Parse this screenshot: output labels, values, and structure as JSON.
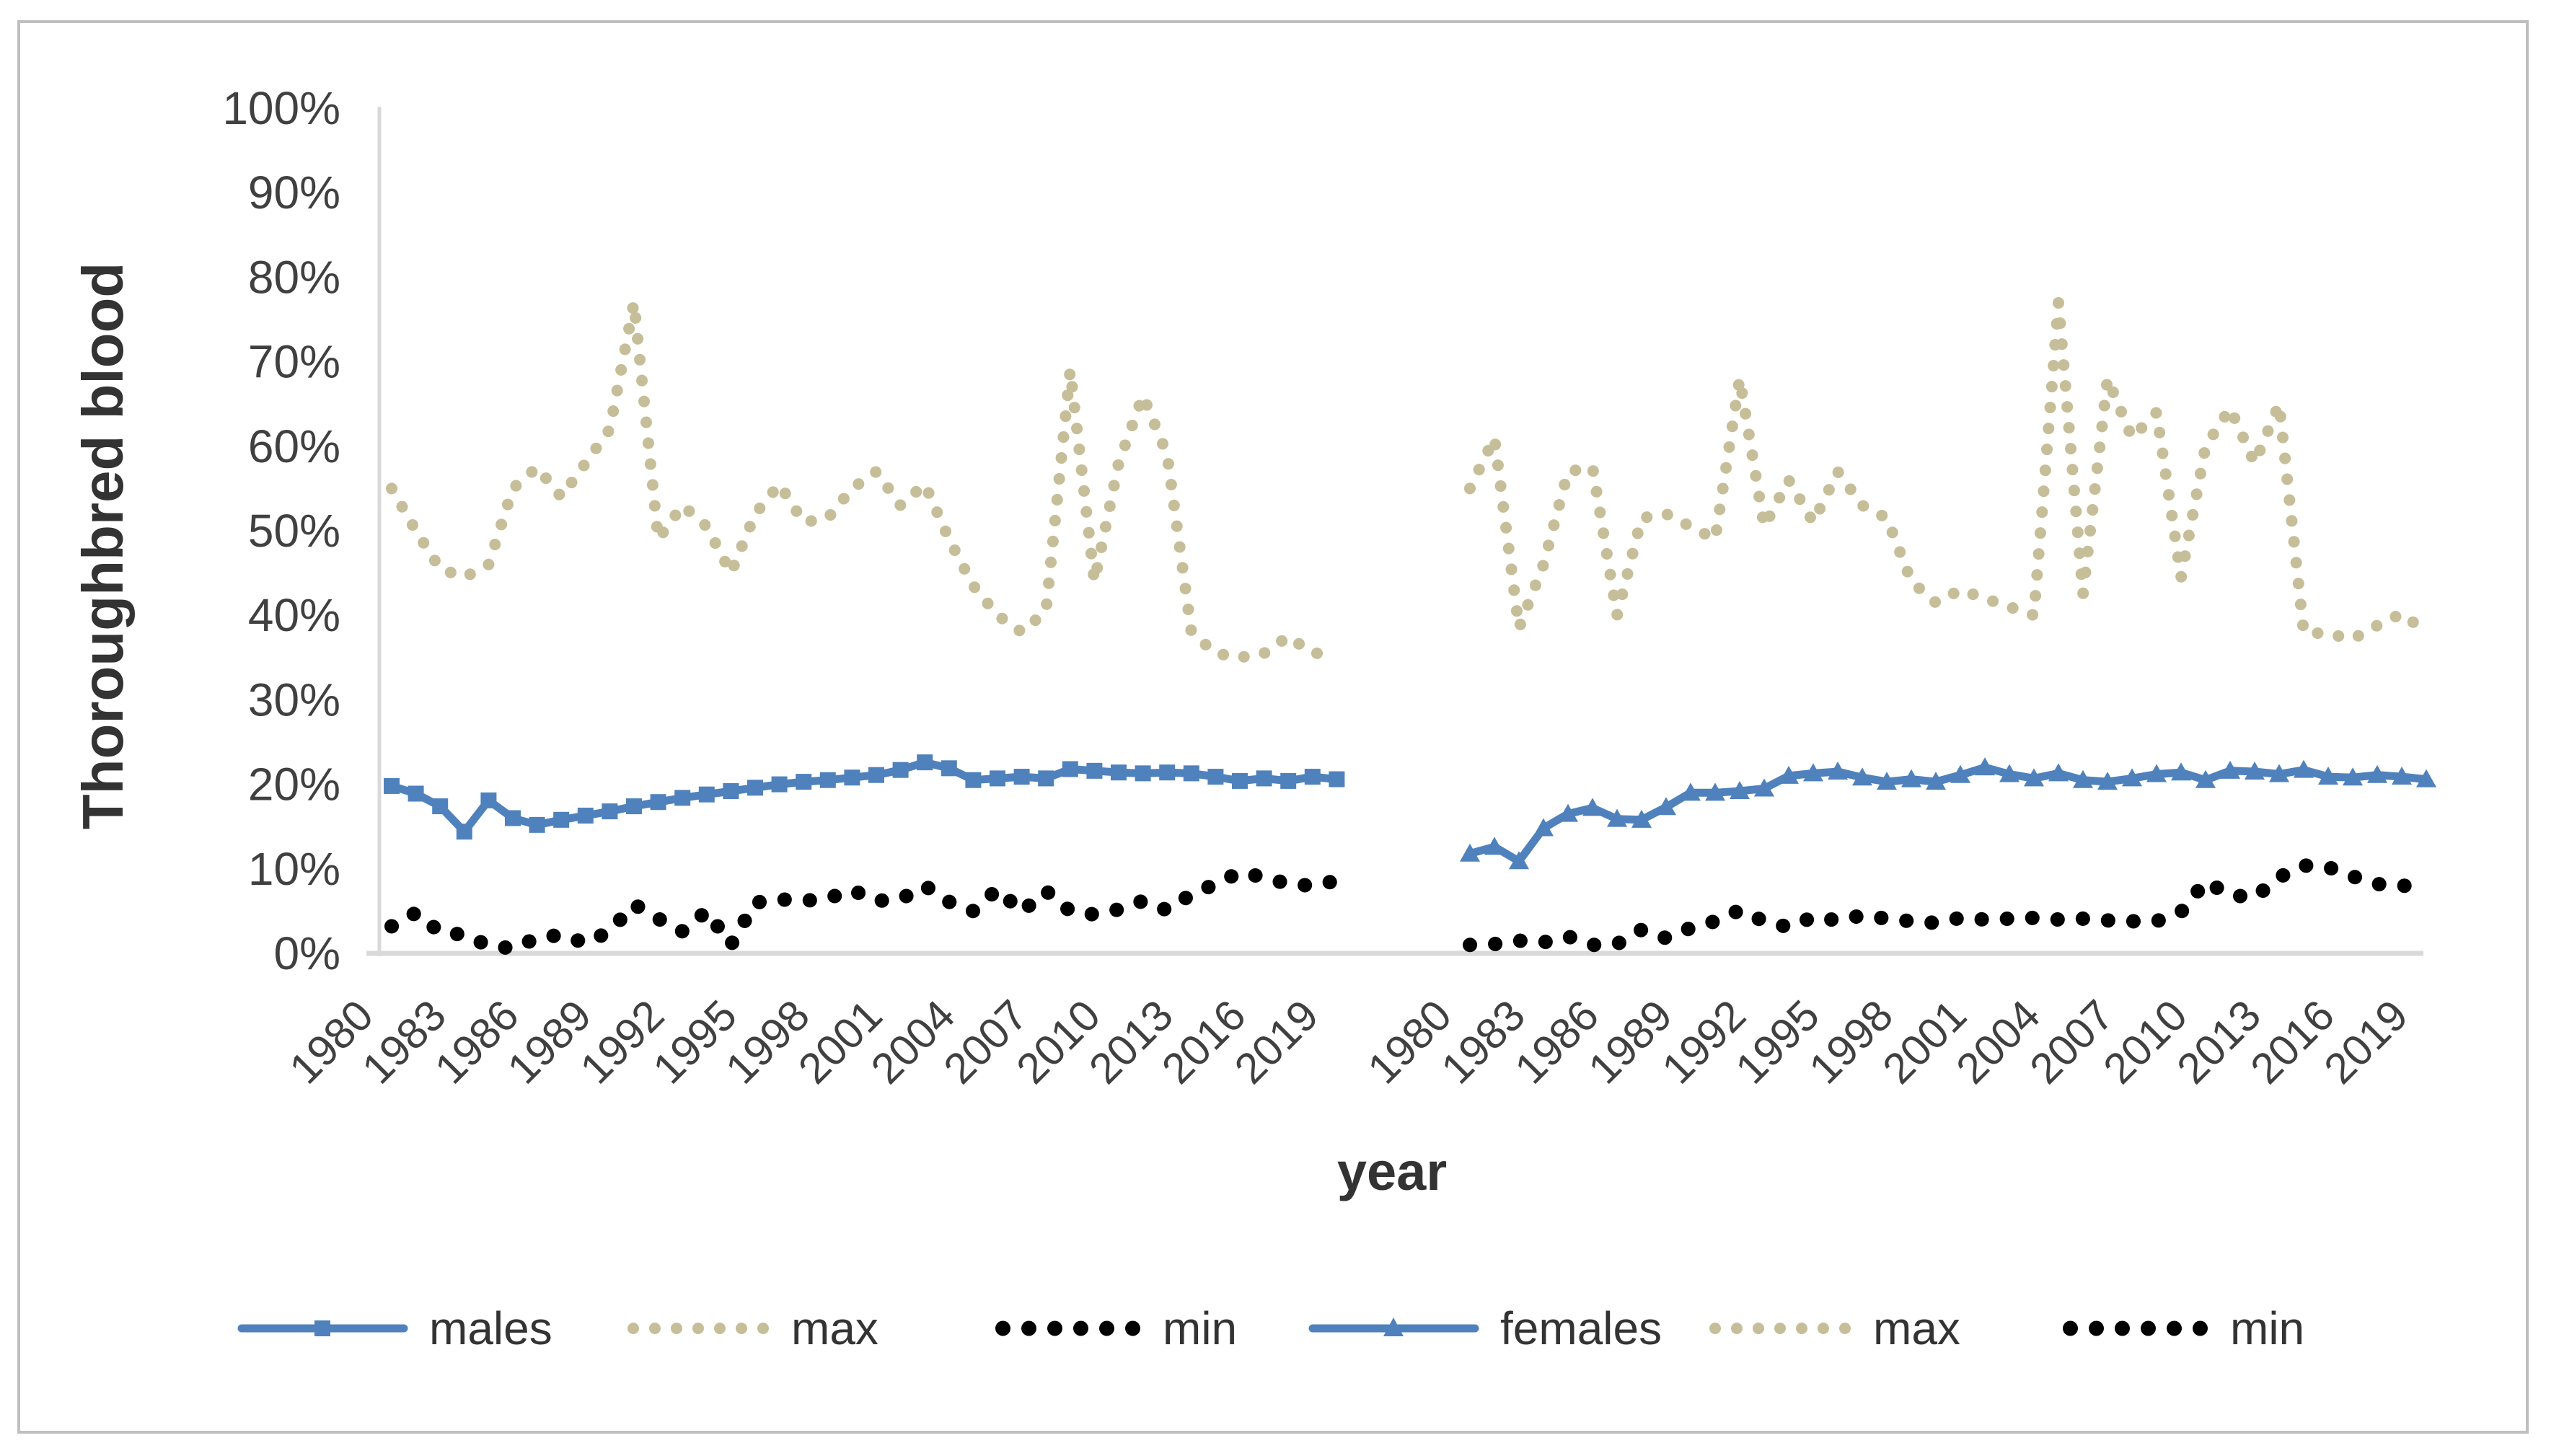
{
  "chart": {
    "colors": {
      "series_blue": "#4F81BD",
      "series_max_tan": "#C5BE98",
      "series_min_black": "#000000",
      "tick_text": "#404040",
      "title_text": "#333333",
      "axis_line": "#D9D9D9",
      "chart_border": "#BFBFBF",
      "background": "#FFFFFF"
    }
  },
  "chart_data": {
    "type": "line",
    "title": "",
    "ylabel": "Thoroughbred blood",
    "xlabel": "year",
    "ylim": [
      0,
      100
    ],
    "grid": false,
    "legend_position": "bottom",
    "y_ticks": [
      0,
      10,
      20,
      30,
      40,
      50,
      60,
      70,
      80,
      90,
      100
    ],
    "y_tick_labels": [
      "0%",
      "10%",
      "20%",
      "30%",
      "40%",
      "50%",
      "60%",
      "70%",
      "80%",
      "90%",
      "100%"
    ],
    "x": [
      1980,
      1981,
      1982,
      1983,
      1984,
      1985,
      1986,
      1987,
      1988,
      1989,
      1990,
      1991,
      1992,
      1993,
      1994,
      1995,
      1996,
      1997,
      1998,
      1999,
      2000,
      2001,
      2002,
      2003,
      2004,
      2005,
      2006,
      2007,
      2008,
      2009,
      2010,
      2011,
      2012,
      2013,
      2014,
      2015,
      2016,
      2017,
      2018,
      2019
    ],
    "x_tick_years": [
      1980,
      1983,
      1986,
      1989,
      1992,
      1995,
      1998,
      2001,
      2004,
      2007,
      2010,
      2013,
      2016,
      2019
    ],
    "panels": [
      {
        "name": "males",
        "series": [
          {
            "name": "males",
            "style": "solid-square",
            "color": "#4F81BD",
            "values": [
              19.8,
              18.9,
              17.4,
              14.4,
              18.1,
              16.0,
              15.2,
              15.8,
              16.3,
              16.8,
              17.4,
              17.9,
              18.4,
              18.8,
              19.2,
              19.6,
              20.0,
              20.3,
              20.5,
              20.8,
              21.1,
              21.7,
              22.6,
              21.9,
              20.5,
              20.7,
              20.9,
              20.7,
              21.8,
              21.6,
              21.4,
              21.3,
              21.4,
              21.3,
              20.9,
              20.4,
              20.7,
              20.4,
              20.9,
              20.6
            ]
          },
          {
            "name": "max",
            "style": "dotted",
            "color": "#C5BE98",
            "values": [
              55,
              50,
              45.5,
              44.5,
              46,
              55,
              57.5,
              54,
              58,
              62,
              77,
              49,
              53,
              50.5,
              45,
              52,
              55.5,
              51,
              51.5,
              55,
              57,
              53,
              55.5,
              49,
              43.5,
              40,
              38,
              40.5,
              69,
              44,
              58,
              66,
              59,
              38,
              35.5,
              35,
              35.5,
              37.5,
              35.5,
              35.5
            ]
          },
          {
            "name": "min",
            "style": "dotted",
            "color": "#000000",
            "values": [
              3.2,
              4.8,
              2.5,
              2.2,
              0.9,
              0.6,
              1.8,
              2.2,
              1.2,
              2.6,
              5.8,
              4.1,
              2.6,
              5.0,
              1.0,
              6.0,
              6.4,
              6.2,
              6.5,
              7.5,
              6.2,
              6.4,
              8.0,
              6.1,
              5.0,
              7.6,
              4.9,
              7.4,
              5.0,
              4.6,
              5.2,
              6.2,
              5.1,
              7.0,
              8.2,
              9.6,
              9.0,
              8.2,
              8.0,
              8.6
            ]
          }
        ]
      },
      {
        "name": "females",
        "series": [
          {
            "name": "females",
            "style": "solid-triangle",
            "color": "#4F81BD",
            "values": [
              11.8,
              12.6,
              10.9,
              14.8,
              16.5,
              17.2,
              15.9,
              15.8,
              17.3,
              19.0,
              19.0,
              19.2,
              19.5,
              21.0,
              21.3,
              21.5,
              20.8,
              20.3,
              20.6,
              20.3,
              21.1,
              22.0,
              21.2,
              20.7,
              21.3,
              20.5,
              20.3,
              20.7,
              21.2,
              21.4,
              20.5,
              21.6,
              21.5,
              21.2,
              21.7,
              20.9,
              20.8,
              21.1,
              20.9,
              20.6
            ]
          },
          {
            "name": "max",
            "style": "dotted",
            "color": "#C5BE98",
            "values": [
              55,
              61,
              38.5,
              46,
              57,
              57.5,
              40,
              51.5,
              52,
              50.5,
              49,
              68,
              50.5,
              56,
              51,
              57,
              53,
              51.5,
              44,
              41.5,
              43,
              42,
              41,
              40,
              77,
              42.5,
              68,
              61,
              64,
              44.5,
              60,
              64.5,
              58,
              65,
              38,
              37.8,
              37.2,
              38.8,
              40.2,
              38
            ]
          },
          {
            "name": "min",
            "style": "dotted",
            "color": "#000000",
            "values": [
              1.0,
              1.1,
              1.5,
              1.3,
              2.0,
              1.0,
              1.1,
              2.8,
              1.8,
              3.0,
              3.8,
              5.1,
              3.8,
              3.1,
              4.3,
              3.9,
              4.5,
              4.1,
              3.8,
              3.6,
              4.2,
              4.0,
              4.1,
              4.2,
              4.0,
              4.1,
              3.9,
              3.8,
              3.8,
              4.9,
              8.5,
              6.9,
              6.6,
              9.0,
              10.4,
              10.2,
              9.1,
              8.2,
              8.0,
              8.0
            ]
          }
        ]
      }
    ],
    "legend": [
      {
        "label": "males",
        "swatch": "line-square",
        "color": "#4F81BD"
      },
      {
        "label": "max",
        "swatch": "dots",
        "color": "#C5BE98"
      },
      {
        "label": "min",
        "swatch": "dots",
        "color": "#000000"
      },
      {
        "label": "females",
        "swatch": "line-triangle",
        "color": "#4F81BD"
      },
      {
        "label": "max",
        "swatch": "dots",
        "color": "#C5BE98"
      },
      {
        "label": "min",
        "swatch": "dots",
        "color": "#000000"
      }
    ]
  }
}
